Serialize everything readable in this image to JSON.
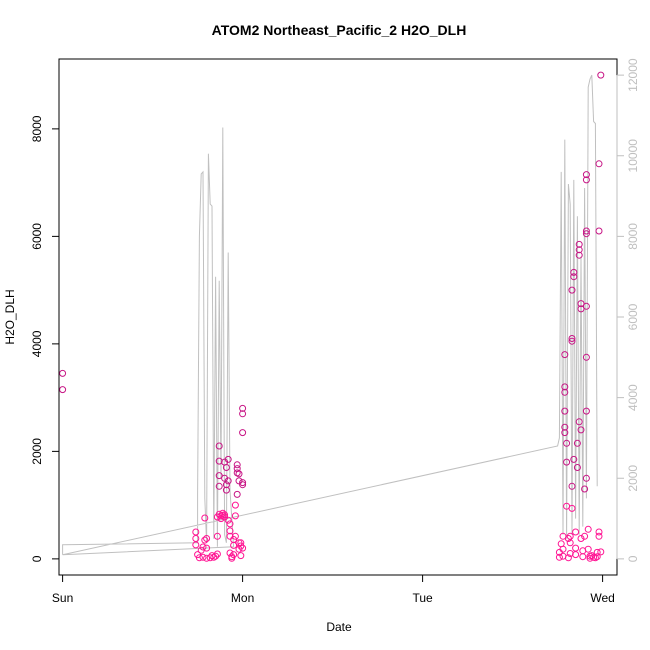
{
  "chart_data": {
    "type": "scatter",
    "title": "ATOM2 Northeast_Pacific_2 H2O_DLH",
    "xlabel": "Date",
    "ylabel": "H2O_DLH",
    "x_ticks": [
      {
        "label": "Sun",
        "day": 0
      },
      {
        "label": "Mon",
        "day": 1
      },
      {
        "label": "Tue",
        "day": 2
      },
      {
        "label": "Wed",
        "day": 3
      }
    ],
    "xlim": [
      -0.02,
      3.08
    ],
    "ylim": [
      -300,
      9300
    ],
    "y_ticks": [
      0,
      2000,
      4000,
      6000,
      8000
    ],
    "y2_ticks": [
      0,
      2000,
      4000,
      6000,
      8000,
      10000,
      12000
    ],
    "y2lim": [
      -400,
      12400
    ],
    "colors": {
      "points_low": "#ff1493",
      "points_high": "#c71585",
      "line": "#c0c0c0",
      "axis": "#000000",
      "right_axis": "#bfbfbf"
    },
    "series": [
      {
        "kind": "points",
        "points": [
          [
            0.0,
            3150
          ],
          [
            0.0,
            3450
          ],
          [
            0.74,
            500
          ],
          [
            0.74,
            380
          ],
          [
            0.74,
            260
          ],
          [
            0.75,
            80
          ],
          [
            0.76,
            20
          ],
          [
            0.77,
            160
          ],
          [
            0.78,
            30
          ],
          [
            0.78,
            220
          ],
          [
            0.79,
            350
          ],
          [
            0.79,
            760
          ],
          [
            0.8,
            380
          ],
          [
            0.8,
            200
          ],
          [
            0.8,
            10
          ],
          [
            0.82,
            20
          ],
          [
            0.83,
            60
          ],
          [
            0.84,
            30
          ],
          [
            0.85,
            50
          ],
          [
            0.86,
            90
          ],
          [
            0.86,
            420
          ],
          [
            0.86,
            780
          ],
          [
            0.87,
            830
          ],
          [
            0.87,
            1350
          ],
          [
            0.87,
            1550
          ],
          [
            0.87,
            1820
          ],
          [
            0.87,
            2100
          ],
          [
            0.88,
            750
          ],
          [
            0.88,
            800
          ],
          [
            0.89,
            850
          ],
          [
            0.89,
            810
          ],
          [
            0.9,
            820
          ],
          [
            0.9,
            780
          ],
          [
            0.9,
            1800
          ],
          [
            0.9,
            1500
          ],
          [
            0.91,
            1700
          ],
          [
            0.91,
            1280
          ],
          [
            0.91,
            1380
          ],
          [
            0.92,
            1450
          ],
          [
            0.92,
            1850
          ],
          [
            0.92,
            720
          ],
          [
            0.93,
            650
          ],
          [
            0.93,
            520
          ],
          [
            0.93,
            420
          ],
          [
            0.93,
            110
          ],
          [
            0.94,
            40
          ],
          [
            0.94,
            10
          ],
          [
            0.95,
            80
          ],
          [
            0.95,
            360
          ],
          [
            0.95,
            250
          ],
          [
            0.96,
            420
          ],
          [
            0.96,
            800
          ],
          [
            0.96,
            1000
          ],
          [
            0.97,
            1200
          ],
          [
            0.97,
            1600
          ],
          [
            0.97,
            1680
          ],
          [
            0.97,
            1750
          ],
          [
            0.98,
            1580
          ],
          [
            0.98,
            1450
          ],
          [
            0.98,
            300
          ],
          [
            0.98,
            180
          ],
          [
            0.99,
            60
          ],
          [
            0.99,
            240
          ],
          [
            0.99,
            300
          ],
          [
            1.0,
            1380
          ],
          [
            1.0,
            1420
          ],
          [
            1.0,
            2350
          ],
          [
            1.0,
            2700
          ],
          [
            1.0,
            2800
          ],
          [
            1.0,
            200
          ],
          [
            2.76,
            120
          ],
          [
            2.76,
            30
          ],
          [
            2.77,
            280
          ],
          [
            2.78,
            50
          ],
          [
            2.78,
            180
          ],
          [
            2.78,
            420
          ],
          [
            2.79,
            2350
          ],
          [
            2.79,
            2450
          ],
          [
            2.79,
            2750
          ],
          [
            2.79,
            3100
          ],
          [
            2.79,
            3200
          ],
          [
            2.79,
            3800
          ],
          [
            2.8,
            1800
          ],
          [
            2.8,
            2150
          ],
          [
            2.8,
            980
          ],
          [
            2.81,
            380
          ],
          [
            2.81,
            20
          ],
          [
            2.82,
            100
          ],
          [
            2.82,
            300
          ],
          [
            2.82,
            420
          ],
          [
            2.83,
            940
          ],
          [
            2.83,
            1350
          ],
          [
            2.83,
            4100
          ],
          [
            2.83,
            4050
          ],
          [
            2.83,
            5000
          ],
          [
            2.84,
            5250
          ],
          [
            2.84,
            5330
          ],
          [
            2.84,
            1850
          ],
          [
            2.85,
            200
          ],
          [
            2.85,
            80
          ],
          [
            2.85,
            500
          ],
          [
            2.86,
            1700
          ],
          [
            2.86,
            2150
          ],
          [
            2.87,
            2550
          ],
          [
            2.87,
            5650
          ],
          [
            2.87,
            5750
          ],
          [
            2.87,
            5850
          ],
          [
            2.88,
            4650
          ],
          [
            2.88,
            4750
          ],
          [
            2.88,
            2400
          ],
          [
            2.88,
            380
          ],
          [
            2.89,
            40
          ],
          [
            2.89,
            150
          ],
          [
            2.9,
            420
          ],
          [
            2.9,
            1300
          ],
          [
            2.91,
            1500
          ],
          [
            2.91,
            2750
          ],
          [
            2.91,
            3750
          ],
          [
            2.91,
            4700
          ],
          [
            2.91,
            6050
          ],
          [
            2.91,
            6100
          ],
          [
            2.91,
            7050
          ],
          [
            2.91,
            7150
          ],
          [
            2.92,
            550
          ],
          [
            2.92,
            180
          ],
          [
            2.93,
            50
          ],
          [
            2.93,
            10
          ],
          [
            2.94,
            60
          ],
          [
            2.95,
            30
          ],
          [
            2.96,
            20
          ],
          [
            2.97,
            40
          ],
          [
            2.97,
            120
          ],
          [
            2.98,
            420
          ],
          [
            2.98,
            500
          ],
          [
            2.98,
            6100
          ],
          [
            2.98,
            7350
          ],
          [
            2.99,
            9000
          ],
          [
            2.99,
            130
          ]
        ]
      },
      {
        "kind": "line",
        "axis": "right",
        "points": [
          [
            0.0,
            300
          ],
          [
            0.0,
            100
          ],
          [
            0.0,
            350
          ],
          [
            0.75,
            400
          ],
          [
            0.75,
            1600
          ],
          [
            0.76,
            8000
          ],
          [
            0.77,
            9550
          ],
          [
            0.78,
            9600
          ],
          [
            0.79,
            1500
          ],
          [
            0.8,
            400
          ],
          [
            0.81,
            10050
          ],
          [
            0.82,
            8800
          ],
          [
            0.83,
            8750
          ],
          [
            0.84,
            500
          ],
          [
            0.85,
            7000
          ],
          [
            0.86,
            300
          ],
          [
            0.87,
            6900
          ],
          [
            0.88,
            2000
          ],
          [
            0.89,
            10700
          ],
          [
            0.9,
            600
          ],
          [
            0.91,
            400
          ],
          [
            0.92,
            7600
          ],
          [
            0.93,
            1700
          ],
          [
            0.95,
            300
          ],
          [
            0.0,
            100
          ],
          [
            2.75,
            2800
          ],
          [
            2.76,
            3000
          ],
          [
            2.77,
            9600
          ],
          [
            2.78,
            600
          ],
          [
            2.79,
            10400
          ],
          [
            2.8,
            500
          ],
          [
            2.81,
            9300
          ],
          [
            2.82,
            8800
          ],
          [
            2.83,
            600
          ],
          [
            2.84,
            9400
          ],
          [
            2.85,
            1000
          ],
          [
            2.86,
            8500
          ],
          [
            2.87,
            600
          ],
          [
            2.88,
            7500
          ],
          [
            2.89,
            800
          ],
          [
            2.9,
            9200
          ],
          [
            2.91,
            1500
          ],
          [
            2.92,
            11700
          ],
          [
            2.93,
            11900
          ],
          [
            2.94,
            12000
          ],
          [
            2.95,
            10850
          ],
          [
            2.96,
            10800
          ],
          [
            2.97,
            1800
          ]
        ]
      }
    ]
  }
}
